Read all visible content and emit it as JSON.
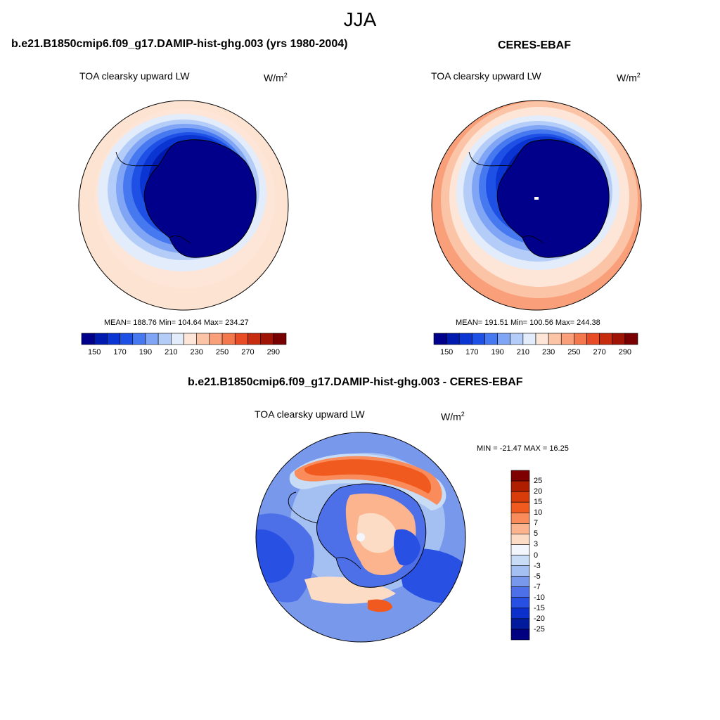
{
  "figure": {
    "title": "JJA"
  },
  "panels": [
    {
      "id": "model",
      "case_title": "b.e21.B1850cmip6.f09_g17.DAMIP-hist-ghg.003 (yrs 1980-2004)",
      "variable": "TOA clearsky upward LW",
      "units_base": "W/m",
      "units_exp": "2",
      "stats": "MEAN= 188.76  Min= 104.64  Max= 234.27"
    },
    {
      "id": "obs",
      "case_title": "CERES-EBAF",
      "variable": "TOA clearsky upward LW",
      "units_base": "W/m",
      "units_exp": "2",
      "stats": "MEAN= 191.51  Min= 100.56  Max= 244.38"
    },
    {
      "id": "diff",
      "case_title": "b.e21.B1850cmip6.f09_g17.DAMIP-hist-ghg.003 - CERES-EBAF",
      "variable": "TOA clearsky upward LW",
      "units_base": "W/m",
      "units_exp": "2",
      "stats": "MIN = -21.47 MAX =  16.25"
    }
  ],
  "colorbar_abs": {
    "colors": [
      "#00008a",
      "#001ab0",
      "#0a35d2",
      "#1e50e6",
      "#4678f0",
      "#80a5f5",
      "#b4cdf8",
      "#e2ecfa",
      "#fde6d8",
      "#fcc4a6",
      "#f9a07a",
      "#f3784e",
      "#e84c26",
      "#c82c0f",
      "#a01405",
      "#780000"
    ],
    "tick_labels": [
      "150",
      "170",
      "190",
      "210",
      "230",
      "250",
      "270",
      "290"
    ]
  },
  "colorbar_diff": {
    "colors": [
      "#7f0000",
      "#b01e00",
      "#d83c0a",
      "#f05a1e",
      "#f98c5a",
      "#fbb48e",
      "#fddcc6",
      "#f3f6fc",
      "#c9dcf6",
      "#a4c0f2",
      "#7898ec",
      "#4d70e8",
      "#2850e2",
      "#0c30cc",
      "#021a9c",
      "#000080"
    ],
    "tick_labels": [
      "25",
      "20",
      "15",
      "10",
      "7",
      "5",
      "3",
      "0",
      "-3",
      "-5",
      "-7",
      "-10",
      "-15",
      "-20",
      "-25"
    ]
  }
}
